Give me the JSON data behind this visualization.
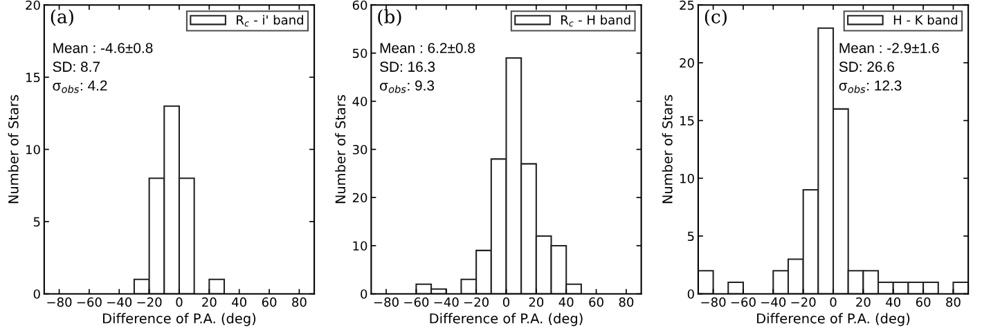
{
  "chart_data": [
    {
      "type": "histogram",
      "xlabel": "Difference of P.A. (deg)",
      "ylabel": "Number of Stars",
      "bins": [
        -90,
        -80,
        -70,
        -60,
        -50,
        -40,
        -30,
        -20,
        -10,
        0,
        10,
        20,
        30,
        40,
        50,
        60,
        70,
        80,
        90
      ],
      "series": [
        {
          "name": "R$_{c}$ - i' band",
          "color": "#ffffff",
          "values": [
            0,
            0,
            0,
            0,
            0,
            0,
            1,
            8,
            13,
            8,
            0,
            1,
            0,
            0,
            0,
            0,
            0,
            0
          ]
        }
      ],
      "xlim": [
        -90,
        90
      ],
      "ylim": [
        0,
        20
      ],
      "xticks": [
        {
          "value": -80,
          "label": "−80"
        },
        {
          "value": -60,
          "label": "−60"
        },
        {
          "value": -40,
          "label": "−40"
        },
        {
          "value": -20,
          "label": "−20"
        },
        0,
        20,
        40,
        60,
        80
      ],
      "yticks": [
        0,
        5,
        10,
        15,
        20
      ],
      "legend": "top right",
      "grid": false,
      "annotations": [
        "(a)",
        "Mean : -4.6±0.8",
        "SD: 8.7",
        "σ$_{obs}$: 4.2"
      ]
    },
    {
      "type": "histogram",
      "xlabel": "Difference of P.A. (deg)",
      "ylabel": "Number of Stars",
      "bins": [
        -90,
        -80,
        -70,
        -60,
        -50,
        -40,
        -30,
        -20,
        -10,
        0,
        10,
        20,
        30,
        40,
        50,
        60,
        70,
        80,
        90
      ],
      "series": [
        {
          "name": "R$_{c}$ - H band",
          "color": "#ffffff",
          "values": [
            0,
            0,
            0,
            2,
            1,
            0,
            3,
            9,
            28,
            49,
            27,
            12,
            10,
            2,
            0,
            0,
            0,
            0
          ]
        }
      ],
      "xlim": [
        -90,
        90
      ],
      "ylim": [
        0,
        60
      ],
      "xticks": [
        {
          "value": -80,
          "label": "−80"
        },
        {
          "value": -60,
          "label": "−60"
        },
        {
          "value": -40,
          "label": "−40"
        },
        {
          "value": -20,
          "label": "−20"
        },
        0,
        20,
        40,
        60,
        80
      ],
      "yticks": [
        0,
        10,
        20,
        30,
        40,
        50,
        60
      ],
      "legend": "top right",
      "grid": false,
      "annotations": [
        "(b)",
        "Mean : 6.2±0.8",
        "SD: 16.3",
        "σ$_{obs}$: 9.3"
      ]
    },
    {
      "type": "histogram",
      "xlabel": "Difference of P.A. (deg)",
      "ylabel": "Number of Stars",
      "bins": [
        -90,
        -80,
        -70,
        -60,
        -50,
        -40,
        -30,
        -20,
        -10,
        0,
        10,
        20,
        30,
        40,
        50,
        60,
        70,
        80,
        90
      ],
      "series": [
        {
          "name": "H - K band",
          "color": "#ffffff",
          "values": [
            2,
            0,
            1,
            0,
            0,
            2,
            3,
            9,
            23,
            16,
            2,
            2,
            1,
            1,
            1,
            1,
            0,
            1
          ]
        }
      ],
      "xlim": [
        -90,
        90
      ],
      "ylim": [
        0,
        25
      ],
      "xticks": [
        {
          "value": -80,
          "label": "−80"
        },
        {
          "value": -60,
          "label": "−60"
        },
        {
          "value": -40,
          "label": "−40"
        },
        {
          "value": -20,
          "label": "−20"
        },
        0,
        20,
        40,
        60,
        80
      ],
      "yticks": [
        0,
        5,
        10,
        15,
        20,
        25
      ],
      "legend": "top right",
      "grid": false,
      "annotations": [
        "(c)",
        "Mean : -2.9±1.6",
        "SD: 26.6",
        "σ$_{obs}$: 12.3"
      ]
    }
  ]
}
